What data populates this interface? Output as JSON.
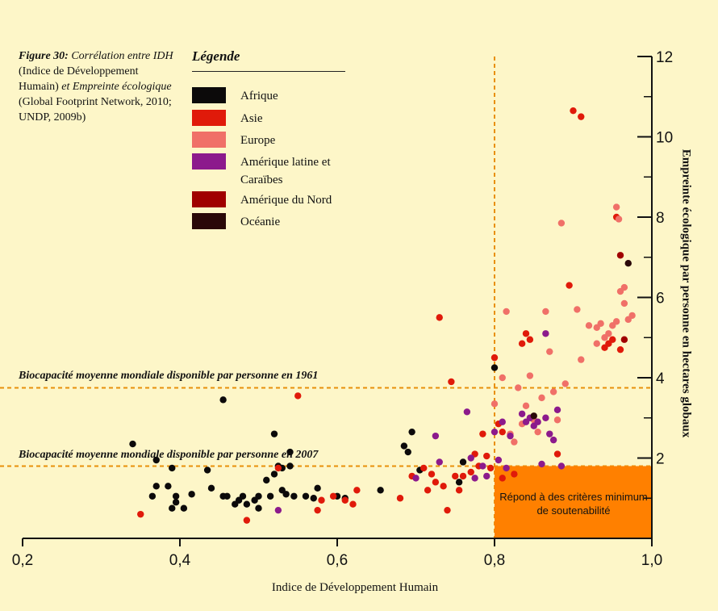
{
  "caption": {
    "figure_label": "Figure 30:",
    "italic_text": "Corrélation entre IDH",
    "plain_text": "(Indice de Développement Humain)",
    "italic_text2": "et Empreinte écologique",
    "source": "(Global Footprint Network, 2010; UNDP, 2009b)"
  },
  "legend_title": "Légende",
  "chart_data": {
    "type": "scatter",
    "xlabel": "Indice de Développement Humain",
    "ylabel": "Empreinte écologique par personne en hectares globaux",
    "xlim": [
      0.2,
      1.0
    ],
    "ylim": [
      0,
      12
    ],
    "x_ticks": [
      "0,2",
      "0,4",
      "0,6",
      "0,8",
      "1,0"
    ],
    "x_tick_values": [
      0.2,
      0.4,
      0.6,
      0.8,
      1.0
    ],
    "y_ticks": [
      "2",
      "4",
      "6",
      "8",
      "10",
      "12"
    ],
    "y_tick_values": [
      2,
      4,
      6,
      8,
      10,
      12
    ],
    "grid": false,
    "annotations": {
      "line_1961": "Biocapacité moyenne mondiale disponible par personne en 1961",
      "line_2007": "Biocapacité moyenne mondiale disponible par personne en 2007",
      "sustainability_box": "Répond à des critères minimum de soutenabilité"
    },
    "reference_lines": {
      "y_1961": 3.75,
      "y_2007": 1.8,
      "x_hdi": 0.8
    },
    "series": [
      {
        "name": "Afrique",
        "color": "#0c0a0a",
        "points": [
          [
            0.34,
            2.35
          ],
          [
            0.37,
            1.95
          ],
          [
            0.37,
            1.3
          ],
          [
            0.365,
            1.05
          ],
          [
            0.385,
            1.3
          ],
          [
            0.39,
            1.75
          ],
          [
            0.39,
            0.75
          ],
          [
            0.395,
            1.05
          ],
          [
            0.395,
            0.9
          ],
          [
            0.405,
            0.75
          ],
          [
            0.415,
            1.1
          ],
          [
            0.435,
            1.7
          ],
          [
            0.44,
            1.25
          ],
          [
            0.455,
            3.45
          ],
          [
            0.455,
            1.05
          ],
          [
            0.46,
            1.05
          ],
          [
            0.47,
            0.85
          ],
          [
            0.475,
            0.95
          ],
          [
            0.48,
            1.05
          ],
          [
            0.485,
            0.85
          ],
          [
            0.495,
            0.95
          ],
          [
            0.5,
            1.05
          ],
          [
            0.5,
            0.75
          ],
          [
            0.51,
            1.45
          ],
          [
            0.515,
            1.05
          ],
          [
            0.52,
            1.6
          ],
          [
            0.52,
            2.6
          ],
          [
            0.525,
            1.8
          ],
          [
            0.53,
            1.75
          ],
          [
            0.53,
            1.2
          ],
          [
            0.535,
            1.1
          ],
          [
            0.54,
            2.15
          ],
          [
            0.54,
            1.8
          ],
          [
            0.545,
            1.05
          ],
          [
            0.56,
            1.05
          ],
          [
            0.57,
            1.0
          ],
          [
            0.575,
            1.25
          ],
          [
            0.6,
            1.05
          ],
          [
            0.61,
            1.0
          ],
          [
            0.655,
            1.2
          ],
          [
            0.685,
            2.3
          ],
          [
            0.69,
            2.15
          ],
          [
            0.695,
            2.65
          ],
          [
            0.705,
            1.7
          ],
          [
            0.755,
            1.4
          ],
          [
            0.76,
            1.9
          ],
          [
            0.8,
            4.25
          ]
        ]
      },
      {
        "name": "Asie",
        "color": "#e01a0a",
        "points": [
          [
            0.35,
            0.6
          ],
          [
            0.485,
            0.45
          ],
          [
            0.525,
            1.75
          ],
          [
            0.55,
            3.55
          ],
          [
            0.575,
            0.7
          ],
          [
            0.58,
            0.95
          ],
          [
            0.595,
            1.05
          ],
          [
            0.61,
            0.95
          ],
          [
            0.62,
            0.85
          ],
          [
            0.625,
            1.2
          ],
          [
            0.68,
            1.0
          ],
          [
            0.695,
            1.55
          ],
          [
            0.71,
            1.75
          ],
          [
            0.715,
            1.2
          ],
          [
            0.72,
            1.6
          ],
          [
            0.725,
            1.4
          ],
          [
            0.73,
            5.5
          ],
          [
            0.735,
            1.3
          ],
          [
            0.74,
            0.7
          ],
          [
            0.745,
            3.9
          ],
          [
            0.75,
            1.55
          ],
          [
            0.755,
            1.2
          ],
          [
            0.76,
            1.55
          ],
          [
            0.77,
            1.65
          ],
          [
            0.775,
            2.1
          ],
          [
            0.78,
            1.8
          ],
          [
            0.785,
            2.6
          ],
          [
            0.79,
            2.05
          ],
          [
            0.795,
            1.75
          ],
          [
            0.8,
            4.5
          ],
          [
            0.81,
            1.5
          ],
          [
            0.825,
            1.6
          ],
          [
            0.835,
            4.85
          ],
          [
            0.84,
            5.1
          ],
          [
            0.845,
            4.95
          ],
          [
            0.88,
            2.1
          ],
          [
            0.895,
            6.3
          ],
          [
            0.9,
            10.65
          ],
          [
            0.91,
            10.5
          ],
          [
            0.94,
            4.75
          ],
          [
            0.945,
            4.85
          ],
          [
            0.95,
            4.95
          ],
          [
            0.96,
            4.7
          ],
          [
            0.955,
            8.0
          ],
          [
            0.805,
            2.85
          ],
          [
            0.81,
            2.65
          ]
        ]
      },
      {
        "name": "Europe",
        "color": "#f07068",
        "points": [
          [
            0.8,
            3.35
          ],
          [
            0.81,
            4.0
          ],
          [
            0.815,
            5.65
          ],
          [
            0.82,
            2.6
          ],
          [
            0.825,
            2.4
          ],
          [
            0.83,
            3.75
          ],
          [
            0.835,
            2.85
          ],
          [
            0.84,
            3.3
          ],
          [
            0.845,
            4.05
          ],
          [
            0.85,
            2.95
          ],
          [
            0.855,
            2.65
          ],
          [
            0.86,
            3.5
          ],
          [
            0.865,
            5.65
          ],
          [
            0.87,
            4.65
          ],
          [
            0.875,
            3.65
          ],
          [
            0.88,
            2.95
          ],
          [
            0.885,
            7.85
          ],
          [
            0.89,
            3.85
          ],
          [
            0.905,
            5.7
          ],
          [
            0.91,
            4.45
          ],
          [
            0.92,
            5.3
          ],
          [
            0.93,
            5.25
          ],
          [
            0.935,
            5.35
          ],
          [
            0.94,
            5.0
          ],
          [
            0.945,
            5.1
          ],
          [
            0.95,
            5.3
          ],
          [
            0.955,
            5.4
          ],
          [
            0.955,
            8.25
          ],
          [
            0.96,
            6.15
          ],
          [
            0.965,
            5.85
          ],
          [
            0.965,
            6.25
          ],
          [
            0.97,
            5.45
          ],
          [
            0.975,
            5.55
          ],
          [
            0.958,
            7.95
          ],
          [
            0.93,
            4.85
          ]
        ]
      },
      {
        "name": "Amérique latine et Caraïbes",
        "color": "#8c1a8c",
        "points": [
          [
            0.525,
            0.7
          ],
          [
            0.7,
            1.5
          ],
          [
            0.725,
            2.55
          ],
          [
            0.73,
            1.9
          ],
          [
            0.765,
            3.15
          ],
          [
            0.77,
            2.0
          ],
          [
            0.775,
            1.5
          ],
          [
            0.785,
            1.8
          ],
          [
            0.79,
            1.55
          ],
          [
            0.8,
            2.65
          ],
          [
            0.805,
            1.95
          ],
          [
            0.81,
            2.9
          ],
          [
            0.815,
            1.75
          ],
          [
            0.82,
            2.55
          ],
          [
            0.835,
            3.1
          ],
          [
            0.84,
            2.9
          ],
          [
            0.845,
            3.0
          ],
          [
            0.85,
            2.8
          ],
          [
            0.855,
            2.9
          ],
          [
            0.86,
            1.85
          ],
          [
            0.865,
            5.1
          ],
          [
            0.87,
            2.6
          ],
          [
            0.875,
            2.45
          ],
          [
            0.88,
            3.2
          ],
          [
            0.885,
            1.8
          ],
          [
            0.865,
            3.0
          ]
        ]
      },
      {
        "name": "Amérique du Nord",
        "color": "#a00000",
        "points": [
          [
            0.96,
            7.05
          ],
          [
            0.965,
            4.95
          ]
        ]
      },
      {
        "name": "Océanie",
        "color": "#2a0808",
        "points": [
          [
            0.97,
            6.85
          ],
          [
            0.85,
            3.05
          ]
        ]
      }
    ]
  }
}
